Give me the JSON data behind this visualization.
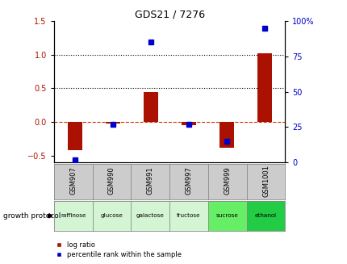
{
  "title": "GDS21 / 7276",
  "samples": [
    "GSM907",
    "GSM990",
    "GSM991",
    "GSM997",
    "GSM999",
    "GSM1001"
  ],
  "protocols": [
    "raffinose",
    "glucose",
    "galactose",
    "fructose",
    "sucrose",
    "ethanol"
  ],
  "protocol_colors": [
    "#d4f5d4",
    "#d4f5d4",
    "#d4f5d4",
    "#d4f5d4",
    "#66ee66",
    "#22cc44"
  ],
  "log_ratios": [
    -0.42,
    -0.02,
    0.45,
    -0.05,
    -0.38,
    1.02
  ],
  "percentile_ranks": [
    2,
    27,
    85,
    27,
    15,
    95
  ],
  "ylim_left": [
    -0.6,
    1.5
  ],
  "ylim_right": [
    0,
    100
  ],
  "right_ticks": [
    0,
    25,
    50,
    75,
    100
  ],
  "right_tick_labels": [
    "0",
    "25",
    "50",
    "75",
    "100%"
  ],
  "left_ticks": [
    -0.5,
    0,
    0.5,
    1.0,
    1.5
  ],
  "hlines_dotted": [
    0.5,
    1.0
  ],
  "hline_dashed": 0.0,
  "bar_color": "#aa1100",
  "scatter_color": "#0000cc",
  "zero_line_color": "#cc3300",
  "bg_color": "#ffffff",
  "plot_bg": "#ffffff",
  "gsm_bg": "#cccccc",
  "legend_bar_label": "log ratio",
  "legend_scatter_label": "percentile rank within the sample",
  "growth_protocol_label": "growth protocol"
}
